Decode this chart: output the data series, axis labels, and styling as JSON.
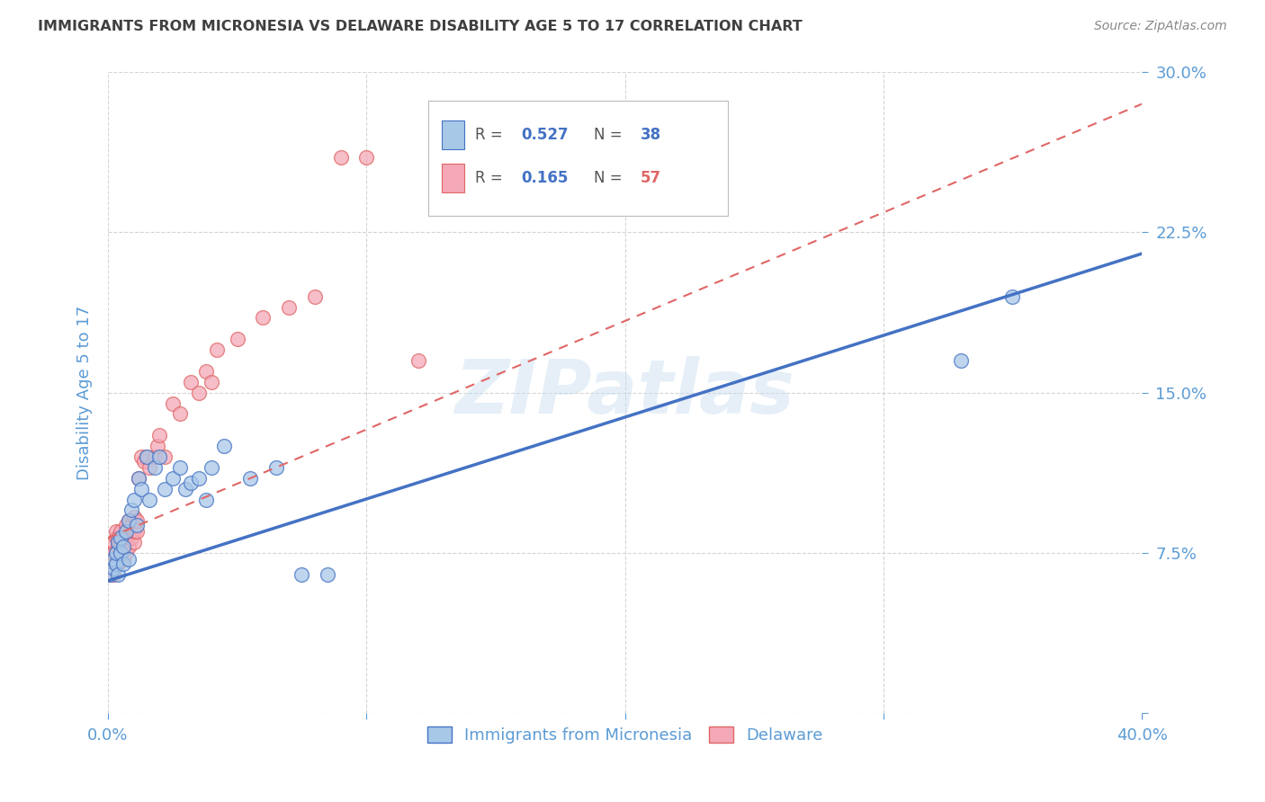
{
  "title": "IMMIGRANTS FROM MICRONESIA VS DELAWARE DISABILITY AGE 5 TO 17 CORRELATION CHART",
  "source": "Source: ZipAtlas.com",
  "ylabel": "Disability Age 5 to 17",
  "xlim": [
    0.0,
    0.4
  ],
  "ylim": [
    0.0,
    0.3
  ],
  "xticks": [
    0.0,
    0.1,
    0.2,
    0.3,
    0.4
  ],
  "yticks": [
    0.0,
    0.075,
    0.15,
    0.225,
    0.3
  ],
  "ytick_labels": [
    "",
    "7.5%",
    "15.0%",
    "22.5%",
    "30.0%"
  ],
  "xtick_labels": [
    "0.0%",
    "",
    "",
    "",
    "40.0%"
  ],
  "blue_R": 0.527,
  "blue_N": 38,
  "pink_R": 0.165,
  "pink_N": 57,
  "blue_color": "#a8c8e8",
  "pink_color": "#f4a8b8",
  "blue_edge_color": "#4472c4",
  "pink_edge_color": "#e06666",
  "blue_line_color": "#4472c4",
  "pink_line_color": "#e06666",
  "axis_color": "#5b9bd5",
  "grid_color": "#d0d0d0",
  "title_color": "#404040",
  "watermark": "ZIPatlas",
  "blue_line_x0": 0.0,
  "blue_line_y0": 0.062,
  "blue_line_x1": 0.4,
  "blue_line_y1": 0.215,
  "pink_line_x0": 0.0,
  "pink_line_y0": 0.082,
  "pink_line_x1": 0.4,
  "pink_line_y1": 0.285,
  "blue_scatter_x": [
    0.001,
    0.002,
    0.002,
    0.003,
    0.003,
    0.004,
    0.004,
    0.005,
    0.005,
    0.006,
    0.006,
    0.007,
    0.008,
    0.008,
    0.009,
    0.01,
    0.011,
    0.012,
    0.013,
    0.015,
    0.016,
    0.018,
    0.02,
    0.022,
    0.025,
    0.028,
    0.03,
    0.032,
    0.035,
    0.038,
    0.04,
    0.045,
    0.055,
    0.065,
    0.075,
    0.085,
    0.33,
    0.35
  ],
  "blue_scatter_y": [
    0.065,
    0.068,
    0.072,
    0.07,
    0.075,
    0.065,
    0.08,
    0.075,
    0.082,
    0.07,
    0.078,
    0.085,
    0.09,
    0.072,
    0.095,
    0.1,
    0.088,
    0.11,
    0.105,
    0.12,
    0.1,
    0.115,
    0.12,
    0.105,
    0.11,
    0.115,
    0.105,
    0.108,
    0.11,
    0.1,
    0.115,
    0.125,
    0.11,
    0.115,
    0.065,
    0.065,
    0.165,
    0.195
  ],
  "pink_scatter_x": [
    0.001,
    0.001,
    0.001,
    0.002,
    0.002,
    0.002,
    0.003,
    0.003,
    0.003,
    0.003,
    0.004,
    0.004,
    0.004,
    0.005,
    0.005,
    0.005,
    0.006,
    0.006,
    0.006,
    0.007,
    0.007,
    0.007,
    0.008,
    0.008,
    0.008,
    0.009,
    0.009,
    0.01,
    0.01,
    0.01,
    0.011,
    0.011,
    0.012,
    0.013,
    0.014,
    0.015,
    0.016,
    0.018,
    0.019,
    0.02,
    0.022,
    0.025,
    0.028,
    0.032,
    0.035,
    0.038,
    0.04,
    0.042,
    0.05,
    0.06,
    0.07,
    0.08,
    0.09,
    0.1,
    0.12,
    0.14,
    0.16
  ],
  "pink_scatter_y": [
    0.065,
    0.07,
    0.075,
    0.065,
    0.075,
    0.08,
    0.07,
    0.075,
    0.082,
    0.085,
    0.07,
    0.078,
    0.082,
    0.075,
    0.08,
    0.085,
    0.072,
    0.078,
    0.082,
    0.075,
    0.082,
    0.088,
    0.078,
    0.085,
    0.09,
    0.082,
    0.088,
    0.08,
    0.085,
    0.092,
    0.085,
    0.09,
    0.11,
    0.12,
    0.118,
    0.12,
    0.115,
    0.12,
    0.125,
    0.13,
    0.12,
    0.145,
    0.14,
    0.155,
    0.15,
    0.16,
    0.155,
    0.17,
    0.175,
    0.185,
    0.19,
    0.195,
    0.26,
    0.26,
    0.165,
    0.245,
    0.255
  ]
}
